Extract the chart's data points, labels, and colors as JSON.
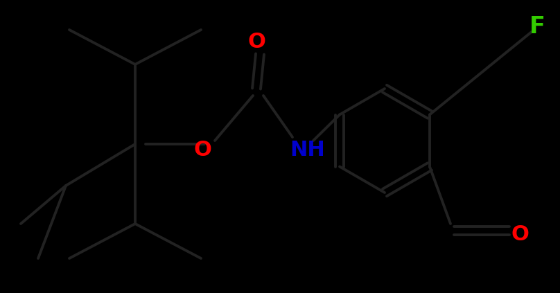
{
  "background_color": "#000000",
  "bond_color": "#ffffff",
  "bond_width": 2.8,
  "figsize": [
    8.08,
    4.23
  ],
  "dpi": 100,
  "atom_colors": {
    "O": "#ff0000",
    "N": "#0000cc",
    "F": "#33cc00"
  },
  "label_fontsize": 20,
  "label_fontweight": "bold"
}
